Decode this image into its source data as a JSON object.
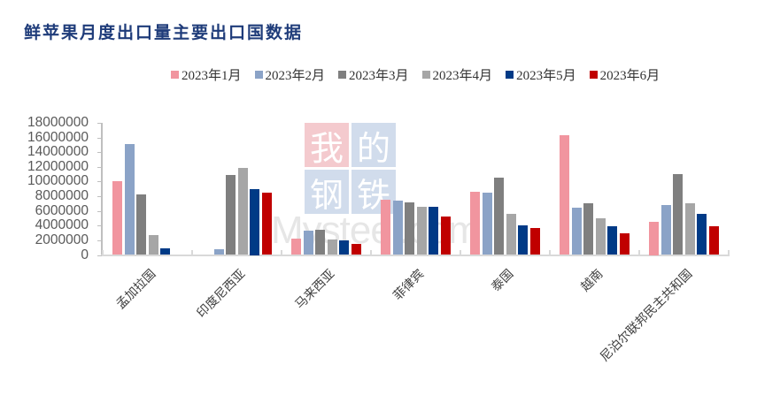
{
  "title": "鲜苹果月度出口量主要出口国数据",
  "legend": [
    {
      "label": "2023年1月",
      "color": "#f1959f"
    },
    {
      "label": "2023年2月",
      "color": "#8ba3c7"
    },
    {
      "label": "2023年3月",
      "color": "#7f7f7f"
    },
    {
      "label": "2023年4月",
      "color": "#a6a6a6"
    },
    {
      "label": "2023年5月",
      "color": "#003a86"
    },
    {
      "label": "2023年6月",
      "color": "#c00000"
    }
  ],
  "watermark": {
    "chars": [
      "我",
      "的",
      "钢",
      "铁"
    ],
    "text": "Mysteel.com"
  },
  "y_ticks": [
    "18000000",
    "16000000",
    "14000000",
    "12000000",
    "10000000",
    "8000000",
    "6000000",
    "4000000",
    "2000000",
    "0"
  ],
  "chart_data": {
    "type": "bar",
    "title": "鲜苹果月度出口量主要出口国数据",
    "xlabel": "",
    "ylabel": "",
    "ylim": [
      0,
      18000000
    ],
    "grid": false,
    "legend_position": "top",
    "categories": [
      "孟加拉国",
      "印度尼西亚",
      "马来西亚",
      "菲律宾",
      "泰国",
      "越南",
      "尼泊尔联邦民主共和国"
    ],
    "series": [
      {
        "name": "2023年1月",
        "values": [
          10000000,
          0,
          2200000,
          7500000,
          8600000,
          16300000,
          4500000
        ]
      },
      {
        "name": "2023年2月",
        "values": [
          15100000,
          800000,
          3300000,
          7400000,
          8500000,
          6400000,
          6800000
        ]
      },
      {
        "name": "2023年3月",
        "values": [
          8200000,
          10900000,
          3400000,
          7200000,
          10500000,
          7000000,
          11000000
        ]
      },
      {
        "name": "2023年4月",
        "values": [
          2700000,
          11900000,
          2100000,
          6600000,
          5600000,
          5000000,
          7000000
        ]
      },
      {
        "name": "2023年5月",
        "values": [
          900000,
          9000000,
          2000000,
          6600000,
          4000000,
          3900000,
          5600000
        ]
      },
      {
        "name": "2023年6月",
        "values": [
          0,
          8500000,
          1500000,
          5200000,
          3700000,
          2950000,
          3900000
        ]
      }
    ]
  }
}
